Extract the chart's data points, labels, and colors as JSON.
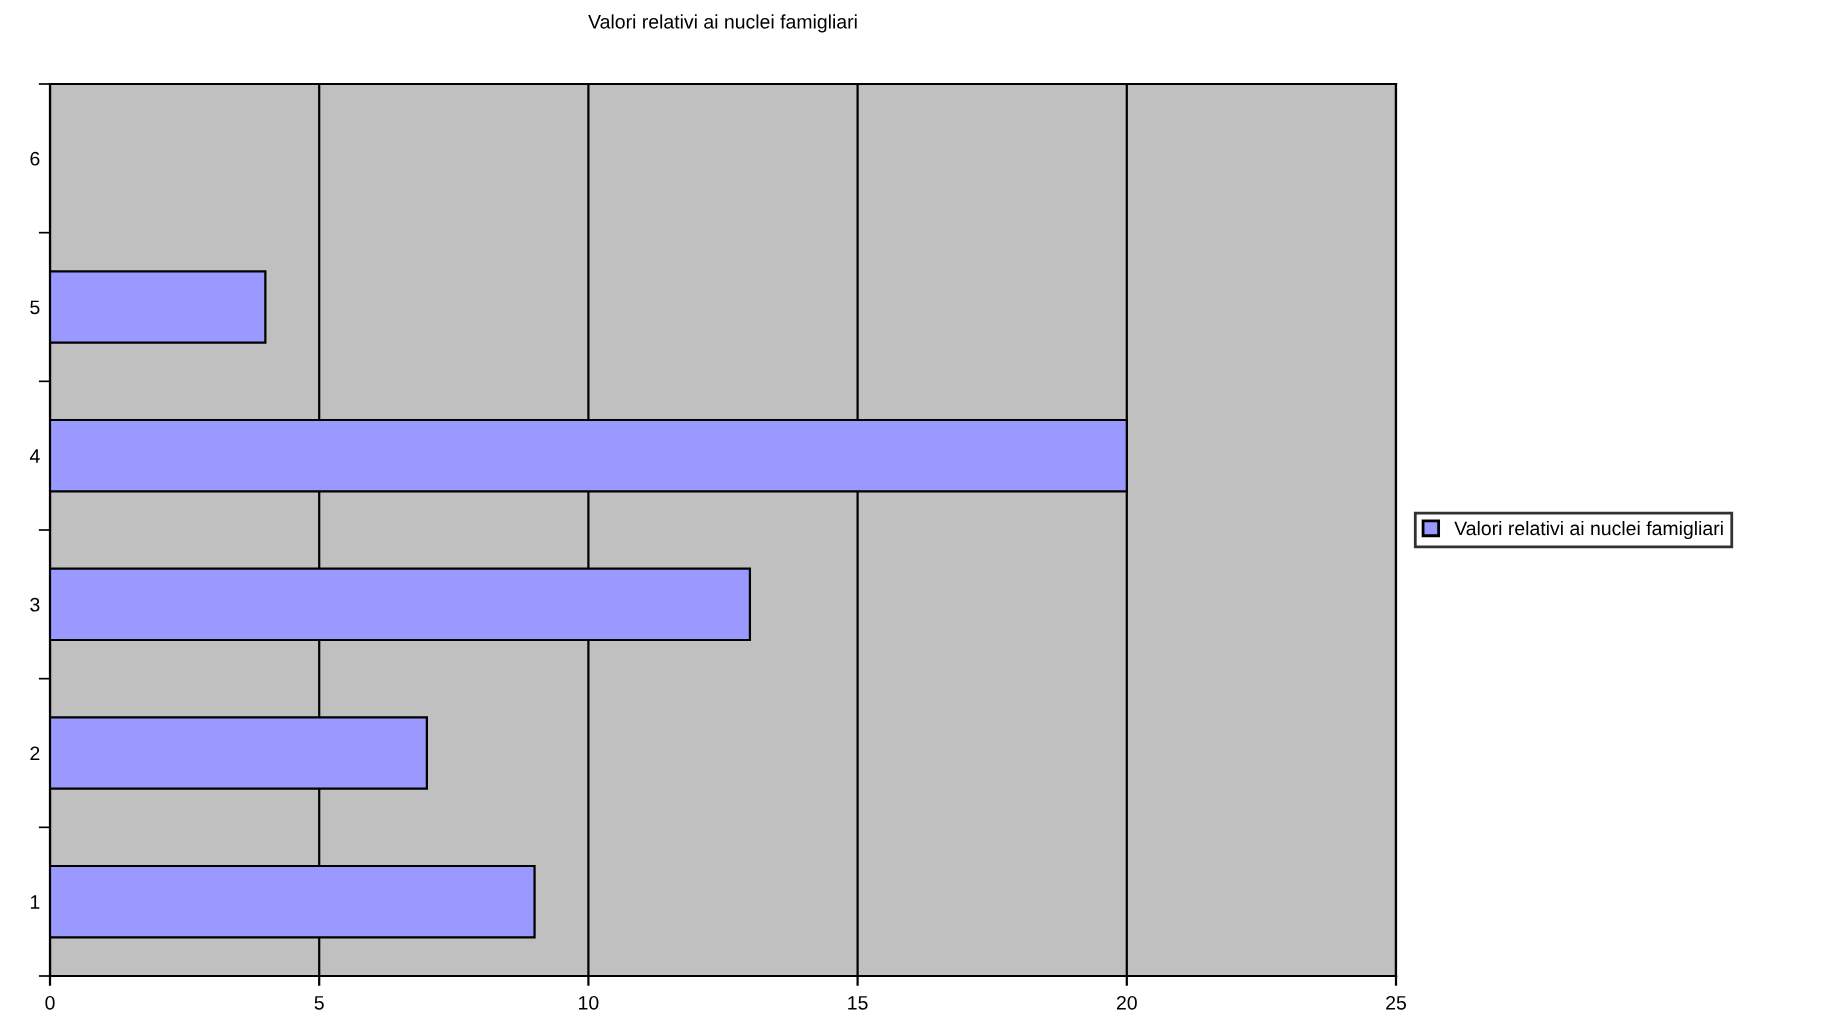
{
  "chart_data": {
    "type": "bar",
    "orientation": "horizontal",
    "title": "Valori relativi ai nuclei famigliari",
    "categories": [
      "6",
      "5",
      "4",
      "3",
      "2",
      "1"
    ],
    "series": [
      {
        "name": "Valori relativi ai nuclei famigliari",
        "color": "#9999ff",
        "values": [
          null,
          4,
          20,
          13,
          7,
          9
        ]
      }
    ],
    "xlim": [
      0,
      25
    ],
    "xticks": [
      0,
      5,
      10,
      15,
      20,
      25
    ],
    "grid": "x",
    "legend": "right"
  }
}
